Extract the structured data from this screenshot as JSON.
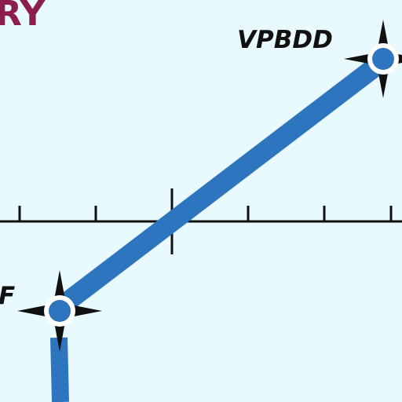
{
  "chart_title_fragment": "RY",
  "waypoints": [
    {
      "id": "vpbdd",
      "label": "VPBDD"
    },
    {
      "id": "lower",
      "label": "F"
    }
  ],
  "colors": {
    "background": "#e8fafd",
    "route": "#2e75bf",
    "title": "#8b1d4f",
    "ink": "#111111",
    "waypoint_fill": "#2e75bf",
    "waypoint_ring": "#ffffff"
  },
  "icons": {
    "waypoint": "compulsory-reporting-point-icon"
  }
}
